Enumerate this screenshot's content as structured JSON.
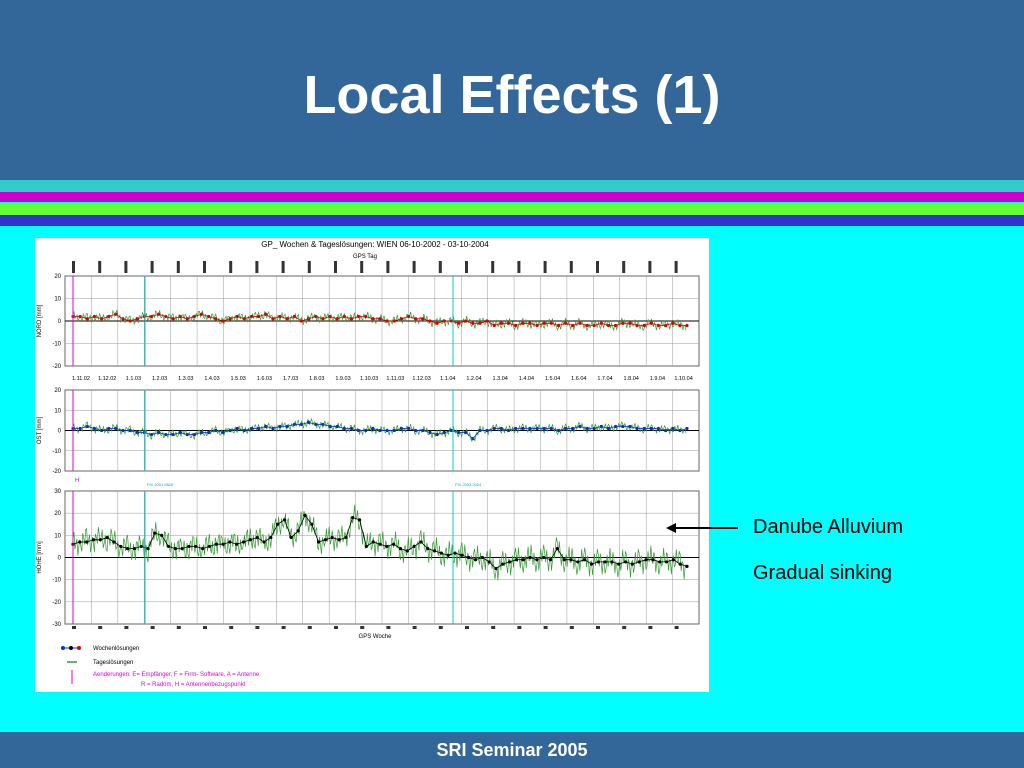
{
  "slide": {
    "title": "Local Effects (1)",
    "footer": "SRI Seminar 2005",
    "colors": {
      "header_bg": "#336699",
      "body_bg": "#00ffff",
      "stripe_cyan": "#33cccc",
      "stripe_magenta": "#cc00cc",
      "stripe_green": "#66ff33",
      "stripe_blue": "#3333cc"
    }
  },
  "annotation": {
    "line1": "Danube Alluvium",
    "line2": "Gradual sinking",
    "arrow": "left-arrow"
  },
  "chart_data": {
    "type": "line",
    "title": "GP_ Wochen & Tageslösungen: WIEN 06-10-2002 - 03-10-2004",
    "top_axis_label": "GPS Tag",
    "bottom_axis_label": "GPS Woche",
    "date_ticks": [
      "1.11.02",
      "1.12.02",
      "1.1.03",
      "1.2.03",
      "1.3.03",
      "1.4.03",
      "1.5.03",
      "1.6.03",
      "1.7.03",
      "1.8.03",
      "1.9.03",
      "1.10.03",
      "1.11.03",
      "1.12.03",
      "1.1.04",
      "1.2.04",
      "1.3.04",
      "1.4.04",
      "1.5.04",
      "1.6.04",
      "1.7.04",
      "1.8.04",
      "1.9.04",
      "1.10.04"
    ],
    "panels": [
      {
        "ylabel": "NORD [mm]",
        "ylim": [
          -20,
          20
        ],
        "yticks": [
          20,
          10,
          0,
          -10,
          -20
        ],
        "weekly_color": "#dd0000",
        "weekly": [
          2,
          2,
          1,
          2,
          1,
          2,
          3,
          1,
          0,
          1,
          2,
          2,
          3,
          2,
          1,
          2,
          1,
          2,
          3,
          2,
          1,
          0,
          1,
          2,
          1,
          2,
          2,
          3,
          1,
          2,
          1,
          2,
          0,
          1,
          2,
          1,
          2,
          1,
          2,
          1,
          2,
          2,
          1,
          1,
          0,
          0,
          1,
          2,
          1,
          1,
          0,
          -1,
          0,
          0,
          -1,
          0,
          -1,
          -1,
          0,
          -2,
          -1,
          -1,
          -2,
          -1,
          -1,
          -2,
          -1,
          -1,
          -2,
          -1,
          -2,
          -1,
          -2,
          -2,
          -1,
          -2,
          -2,
          -1,
          -1,
          -2,
          -2,
          -1,
          -2,
          -2,
          -1,
          -2,
          -2
        ]
      },
      {
        "ylabel": "OST [mm]",
        "ylim": [
          -20,
          20
        ],
        "yticks": [
          20,
          10,
          0,
          -10,
          -20
        ],
        "weekly_color": "#0033cc",
        "weekly": [
          1,
          1,
          2,
          1,
          0,
          1,
          1,
          0,
          0,
          -1,
          -1,
          -2,
          -1,
          -2,
          -2,
          -1,
          -2,
          -2,
          -1,
          -1,
          0,
          -1,
          0,
          1,
          0,
          1,
          1,
          2,
          1,
          2,
          2,
          3,
          3,
          4,
          3,
          3,
          2,
          2,
          1,
          1,
          0,
          0,
          1,
          0,
          0,
          0,
          1,
          1,
          0,
          0,
          -1,
          -2,
          -1,
          0,
          -1,
          -1,
          -4,
          0,
          0,
          1,
          1,
          0,
          1,
          1,
          1,
          1,
          1,
          1,
          0,
          1,
          1,
          2,
          1,
          1,
          2,
          1,
          2,
          2,
          2,
          1,
          1,
          1,
          1,
          0,
          1,
          0,
          1
        ]
      },
      {
        "ylabel": "HÖHE [mm]",
        "ylim": [
          -30,
          30
        ],
        "yticks": [
          30,
          20,
          10,
          0,
          -10,
          -20,
          -30
        ],
        "weekly_color": "#000000",
        "weekly": [
          6,
          7,
          7,
          8,
          8,
          9,
          7,
          5,
          4,
          4,
          5,
          4,
          11,
          10,
          5,
          4,
          4,
          5,
          5,
          4,
          5,
          6,
          6,
          7,
          6,
          7,
          8,
          9,
          7,
          9,
          15,
          17,
          9,
          12,
          19,
          15,
          7,
          8,
          9,
          8,
          9,
          18,
          17,
          5,
          7,
          6,
          5,
          6,
          4,
          3,
          5,
          7,
          4,
          3,
          2,
          1,
          2,
          1,
          0,
          -1,
          0,
          -2,
          -5,
          -3,
          -2,
          -1,
          -1,
          0,
          -1,
          0,
          -1,
          4,
          -1,
          -1,
          -2,
          -1,
          -3,
          -2,
          -2,
          -2,
          -3,
          -2,
          -3,
          -2,
          -1,
          -1,
          -2,
          -2,
          -1,
          -3,
          -4
        ]
      }
    ],
    "daily_color": "#339933",
    "legend": [
      {
        "label": "Wochenlösungen",
        "symbol": "dots-line"
      },
      {
        "label": "Tageslösungen",
        "symbol": "green-dash"
      },
      {
        "label": "Aenderungen: E= Empfänger, F = Firm- Software, A = Antenne",
        "symbol": "magenta-bar"
      },
      {
        "label": "R = Radom, H = Antennenbezugspunkt",
        "symbol": "none"
      }
    ],
    "change_labels": [
      "H"
    ],
    "notes": [
      "FIX 2001.5826",
      "FIX 2003.2024"
    ]
  }
}
